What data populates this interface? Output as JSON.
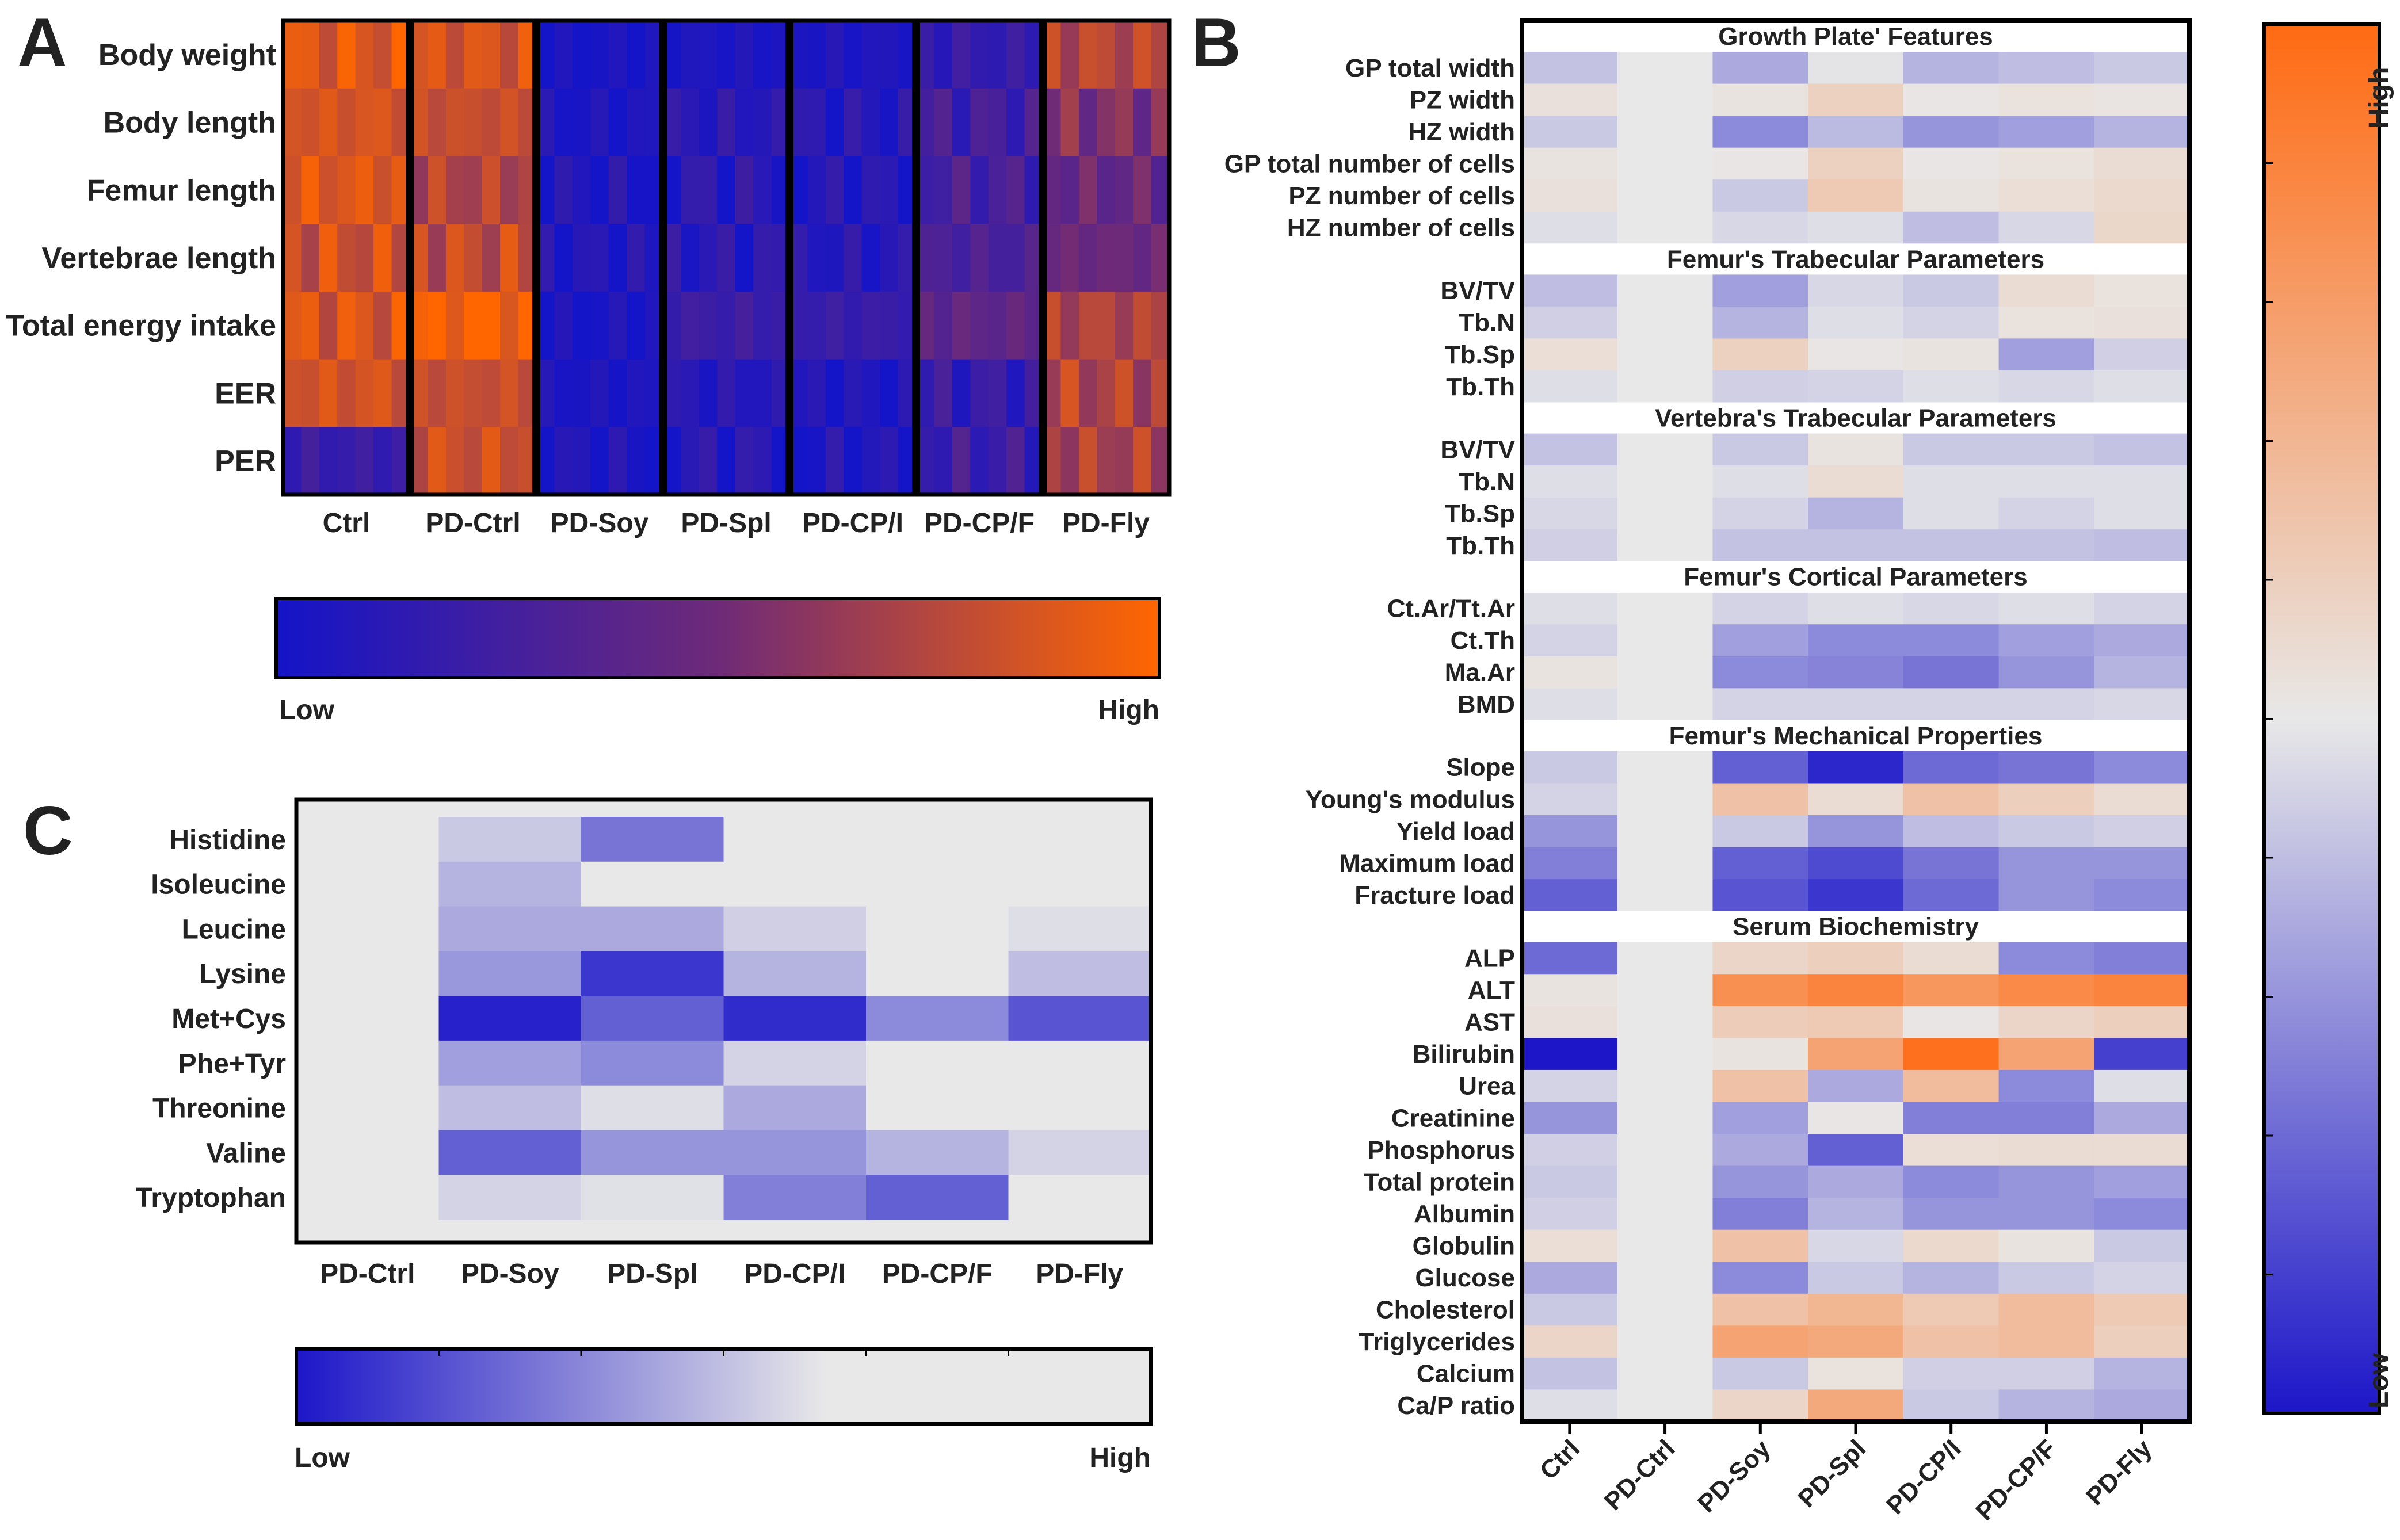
{
  "panels": {
    "a": "A",
    "b": "B",
    "c": "C"
  },
  "scale_labels": {
    "a_low": "Low",
    "a_high": "High",
    "b_low": "Low",
    "b_high": "High",
    "c_low": "Low",
    "c_high": "High"
  },
  "colors": {
    "a_low": "#1414c8",
    "a_mid": "#6e2a78",
    "a_high": "#ff6600",
    "b_low": "#1c16c8",
    "b_mid": "#e8e8e8",
    "b_high": "#ff6a12",
    "c_low": "#1c16c8",
    "c_mid": "#e8e8e8"
  },
  "chart_data": [
    {
      "type": "heatmap",
      "panel": "A",
      "title": "",
      "categories": [
        "Ctrl",
        "PD-Ctrl",
        "PD-Soy",
        "PD-Spl",
        "PD-CP/I",
        "PD-CP/F",
        "PD-Fly"
      ],
      "rows": [
        "Body weight",
        "Body length",
        "Femur length",
        "Vertebrae length",
        "Total energy intake",
        "EER",
        "PER"
      ],
      "replicates_per_group": 7,
      "value_range": [
        0,
        1
      ],
      "values": [
        [
          0.88,
          0.85,
          0.02,
          0.05,
          0.06,
          0.18,
          0.75
        ],
        [
          0.85,
          0.8,
          0.05,
          0.12,
          0.1,
          0.25,
          0.55
        ],
        [
          0.88,
          0.72,
          0.06,
          0.12,
          0.08,
          0.28,
          0.45
        ],
        [
          0.82,
          0.78,
          0.06,
          0.12,
          0.1,
          0.3,
          0.48
        ],
        [
          0.86,
          0.98,
          0.03,
          0.22,
          0.2,
          0.42,
          0.72
        ],
        [
          0.84,
          0.8,
          0.05,
          0.1,
          0.05,
          0.18,
          0.72
        ],
        [
          0.2,
          0.82,
          0.05,
          0.1,
          0.05,
          0.22,
          0.7
        ]
      ]
    },
    {
      "type": "heatmap",
      "panel": "B",
      "title": "",
      "categories": [
        "Ctrl",
        "PD-Ctrl",
        "PD-Soy",
        "PD-Spl",
        "PD-CP/I",
        "PD-CP/F",
        "PD-Fly"
      ],
      "value_range": [
        -1,
        1
      ],
      "sections": [
        {
          "title": "Growth Plate' Features",
          "rows": [
            "GP total width",
            "PZ width",
            "HZ width",
            "GP total number of cells",
            "PZ number of cells",
            "HZ number of cells"
          ],
          "values": [
            [
              -0.18,
              0,
              -0.3,
              -0.02,
              -0.25,
              -0.2,
              -0.15
            ],
            [
              0.06,
              0,
              0.04,
              0.18,
              0.02,
              0.05,
              0.03
            ],
            [
              -0.15,
              0,
              -0.45,
              -0.22,
              -0.4,
              -0.35,
              -0.25
            ],
            [
              0.04,
              0,
              0.02,
              0.18,
              0.02,
              0.05,
              0.1
            ],
            [
              0.06,
              0,
              -0.15,
              0.25,
              0.04,
              0.08,
              0.12
            ],
            [
              -0.05,
              0,
              -0.08,
              -0.05,
              -0.2,
              -0.08,
              0.14
            ]
          ]
        },
        {
          "title": "Femur's Trabecular Parameters",
          "rows": [
            "BV/TV",
            "Tb.N",
            "Tb.Sp",
            "Tb.Th"
          ],
          "values": [
            [
              -0.2,
              0,
              -0.35,
              -0.08,
              -0.15,
              0.1,
              0.05
            ],
            [
              -0.12,
              0,
              -0.25,
              -0.05,
              -0.1,
              0.05,
              0.06
            ],
            [
              0.08,
              0,
              0.18,
              0.02,
              0.04,
              -0.35,
              -0.12
            ],
            [
              -0.05,
              0,
              -0.12,
              -0.1,
              -0.05,
              -0.08,
              -0.05
            ]
          ]
        },
        {
          "title": "Vertebra's Trabecular Parameters",
          "rows": [
            "BV/TV",
            "Tb.N",
            "Tb.Sp",
            "Tb.Th"
          ],
          "values": [
            [
              -0.18,
              0,
              -0.15,
              0.04,
              -0.15,
              -0.15,
              -0.18
            ],
            [
              -0.05,
              0,
              -0.05,
              0.1,
              -0.05,
              -0.05,
              -0.05
            ],
            [
              -0.08,
              0,
              -0.1,
              -0.25,
              -0.05,
              -0.1,
              -0.05
            ],
            [
              -0.12,
              0,
              -0.18,
              -0.18,
              -0.18,
              -0.18,
              -0.2
            ]
          ]
        },
        {
          "title": "Femur's Cortical Parameters",
          "rows": [
            "Ct.Ar/Tt.Ar",
            "Ct.Th",
            "Ma.Ar",
            "BMD"
          ],
          "values": [
            [
              -0.05,
              0,
              -0.1,
              -0.05,
              -0.08,
              -0.05,
              -0.1
            ],
            [
              -0.1,
              0,
              -0.35,
              -0.45,
              -0.45,
              -0.35,
              -0.3
            ],
            [
              0.04,
              0,
              -0.45,
              -0.48,
              -0.55,
              -0.4,
              -0.25
            ],
            [
              -0.05,
              0,
              -0.1,
              -0.1,
              -0.1,
              -0.1,
              -0.08
            ]
          ]
        },
        {
          "title": "Femur's Mechanical Properties",
          "rows": [
            "Slope",
            "Young's modulus",
            "Yield load",
            "Maximum load",
            "Fracture load"
          ],
          "values": [
            [
              -0.15,
              0,
              -0.65,
              -0.92,
              -0.6,
              -0.55,
              -0.45
            ],
            [
              -0.1,
              0,
              0.3,
              0.1,
              0.3,
              0.2,
              0.1
            ],
            [
              -0.4,
              0,
              -0.15,
              -0.4,
              -0.2,
              -0.15,
              -0.12
            ],
            [
              -0.5,
              0,
              -0.65,
              -0.75,
              -0.55,
              -0.4,
              -0.4
            ],
            [
              -0.65,
              0,
              -0.7,
              -0.85,
              -0.6,
              -0.4,
              -0.45
            ]
          ]
        },
        {
          "title": "Serum Biochemistry",
          "rows": [
            "ALP",
            "ALT",
            "AST",
            "Bilirubin",
            "Urea",
            "Creatinine",
            "Phosphorus",
            "Total protein",
            "Albumin",
            "Globulin",
            "Glucose",
            "Cholesterol",
            "Triglycerides",
            "Calcium",
            "Ca/P ratio"
          ],
          "values": [
            [
              -0.6,
              0,
              0.15,
              0.2,
              0.1,
              -0.45,
              -0.5
            ],
            [
              0.04,
              0,
              0.7,
              0.8,
              0.65,
              0.75,
              0.8
            ],
            [
              0.06,
              0,
              0.22,
              0.25,
              0.02,
              0.15,
              0.2
            ],
            [
              -1.0,
              0,
              0.04,
              0.55,
              0.95,
              0.55,
              -0.8
            ],
            [
              -0.1,
              0,
              0.3,
              -0.3,
              0.35,
              -0.45,
              -0.05
            ],
            [
              -0.4,
              0,
              -0.35,
              0.02,
              -0.5,
              -0.5,
              -0.3
            ],
            [
              -0.12,
              0,
              -0.3,
              -0.65,
              0.08,
              0.1,
              0.1
            ],
            [
              -0.15,
              0,
              -0.4,
              -0.3,
              -0.45,
              -0.4,
              -0.35
            ],
            [
              -0.12,
              0,
              -0.5,
              -0.25,
              -0.4,
              -0.4,
              -0.45
            ],
            [
              0.08,
              0,
              0.3,
              -0.08,
              0.12,
              0.04,
              -0.15
            ],
            [
              -0.3,
              0,
              -0.45,
              -0.15,
              -0.25,
              -0.15,
              -0.1
            ],
            [
              -0.15,
              0,
              0.3,
              0.4,
              0.25,
              0.35,
              0.25
            ],
            [
              0.15,
              0,
              0.55,
              0.5,
              0.3,
              0.35,
              0.2
            ],
            [
              -0.18,
              0,
              -0.15,
              0.05,
              -0.12,
              -0.12,
              -0.25
            ],
            [
              -0.05,
              0,
              0.15,
              0.5,
              -0.15,
              -0.25,
              -0.3
            ]
          ]
        }
      ]
    },
    {
      "type": "heatmap",
      "panel": "C",
      "title": "",
      "categories": [
        "PD-Ctrl",
        "PD-Soy",
        "PD-Spl",
        "PD-CP/I",
        "PD-CP/F",
        "PD-Fly"
      ],
      "rows": [
        "Histidine",
        "Isoleucine",
        "Leucine",
        "Lysine",
        "Met+Cys",
        "Phe+Tyr",
        "Threonine",
        "Valine",
        "Tryptophan"
      ],
      "value_range": [
        -1,
        0
      ],
      "values": [
        [
          0,
          -0.15,
          -0.55,
          0,
          0,
          0
        ],
        [
          0,
          -0.25,
          0,
          0,
          0,
          0
        ],
        [
          0,
          -0.3,
          -0.3,
          -0.12,
          0,
          -0.05
        ],
        [
          0,
          -0.38,
          -0.85,
          -0.25,
          0,
          -0.2
        ],
        [
          0,
          -0.95,
          -0.65,
          -0.9,
          -0.45,
          -0.7
        ],
        [
          0,
          -0.35,
          -0.45,
          -0.1,
          0,
          0
        ],
        [
          0,
          -0.2,
          -0.05,
          -0.3,
          0,
          0
        ],
        [
          0,
          -0.65,
          -0.4,
          -0.4,
          -0.25,
          -0.1
        ],
        [
          0,
          -0.1,
          -0.04,
          -0.5,
          -0.65,
          0
        ]
      ]
    }
  ]
}
